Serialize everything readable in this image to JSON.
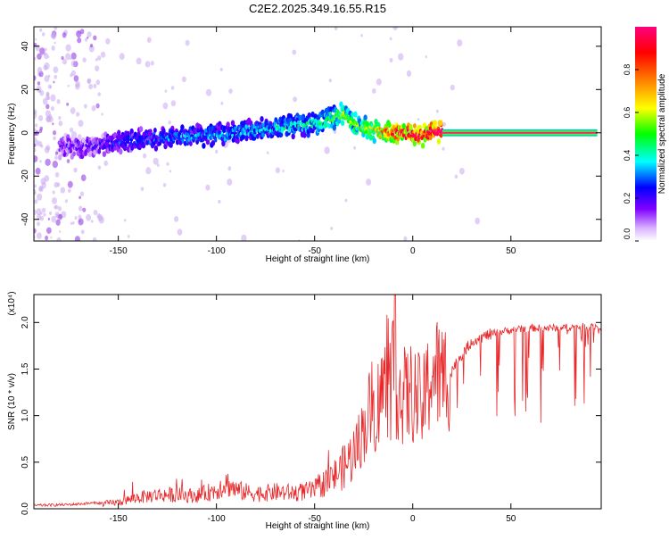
{
  "title": "C2E2.2025.349.16.55.R15",
  "chart_data": [
    {
      "type": "heatmap",
      "title": "C2E2.2025.349.16.55.R15",
      "xlabel": "Height of straight line (km)",
      "ylabel": "Frequency (Hz)",
      "xlim": [
        -193,
        96
      ],
      "ylim": [
        -50,
        49
      ],
      "xticks": [
        -150,
        -100,
        -50,
        0,
        50
      ],
      "yticks": [
        -40,
        -20,
        0,
        20,
        40
      ],
      "colorbar": {
        "label": "Normalized spectral amplitude",
        "range": [
          0,
          1
        ],
        "ticks": [
          0.0,
          0.2,
          0.4,
          0.6,
          0.8
        ],
        "tick_labels": [
          "0.0",
          "0.2",
          "0.4",
          "0.6",
          "0.8"
        ],
        "colormap": [
          "#ffffff",
          "#8000ff",
          "#0000ff",
          "#00ffff",
          "#00ff00",
          "#ffff00",
          "#ff8000",
          "#ff0000",
          "#ff0080"
        ]
      },
      "ridge": {
        "x": [
          -180,
          -160,
          -150,
          -125,
          -100,
          -75,
          -50,
          -40,
          -35,
          -30,
          -20,
          -10,
          0,
          5,
          10,
          15,
          94
        ],
        "freq": [
          -7,
          -6,
          -4,
          -2,
          -1,
          2,
          4,
          7,
          9,
          4,
          1,
          0,
          0,
          -2,
          1,
          0,
          0
        ],
        "amplitude": [
          0.12,
          0.14,
          0.2,
          0.25,
          0.28,
          0.3,
          0.35,
          0.4,
          0.5,
          0.45,
          0.55,
          0.75,
          0.85,
          0.8,
          0.85,
          0.95,
          0.95
        ]
      }
    },
    {
      "type": "line",
      "xlabel": "Height of straight line (km)",
      "ylabel": "SNR (10 * v/v)",
      "scale_label": "(x10⁴)",
      "xlim": [
        -193,
        96
      ],
      "ylim": [
        0,
        2.3
      ],
      "xticks": [
        -150,
        -100,
        -50,
        0,
        50
      ],
      "yticks": [
        0.0,
        0.5,
        1.0,
        1.5,
        2.0
      ],
      "ytick_labels": [
        "0.0",
        "0.5",
        "1.0",
        "1.5",
        "2.0"
      ],
      "color": "#e8282a",
      "series": [
        {
          "name": "SNR",
          "x": [
            -193,
            -175,
            -160,
            -150,
            -140,
            -130,
            -120,
            -110,
            -100,
            -95,
            -90,
            -80,
            -70,
            -60,
            -50,
            -45,
            -40,
            -35,
            -30,
            -25,
            -22,
            -20,
            -15,
            -10,
            -5,
            0,
            5,
            10,
            15,
            20,
            25,
            30,
            40,
            50,
            60,
            70,
            80,
            96
          ],
          "y": [
            0.02,
            0.03,
            0.05,
            0.07,
            0.12,
            0.15,
            0.15,
            0.14,
            0.2,
            0.28,
            0.2,
            0.16,
            0.18,
            0.17,
            0.2,
            0.28,
            0.35,
            0.45,
            0.6,
            0.85,
            1.05,
            1.0,
            1.3,
            1.4,
            1.2,
            1.25,
            1.1,
            1.5,
            1.4,
            1.5,
            1.65,
            1.8,
            1.88,
            1.92,
            1.94,
            1.94,
            1.95,
            1.96
          ]
        }
      ]
    }
  ]
}
